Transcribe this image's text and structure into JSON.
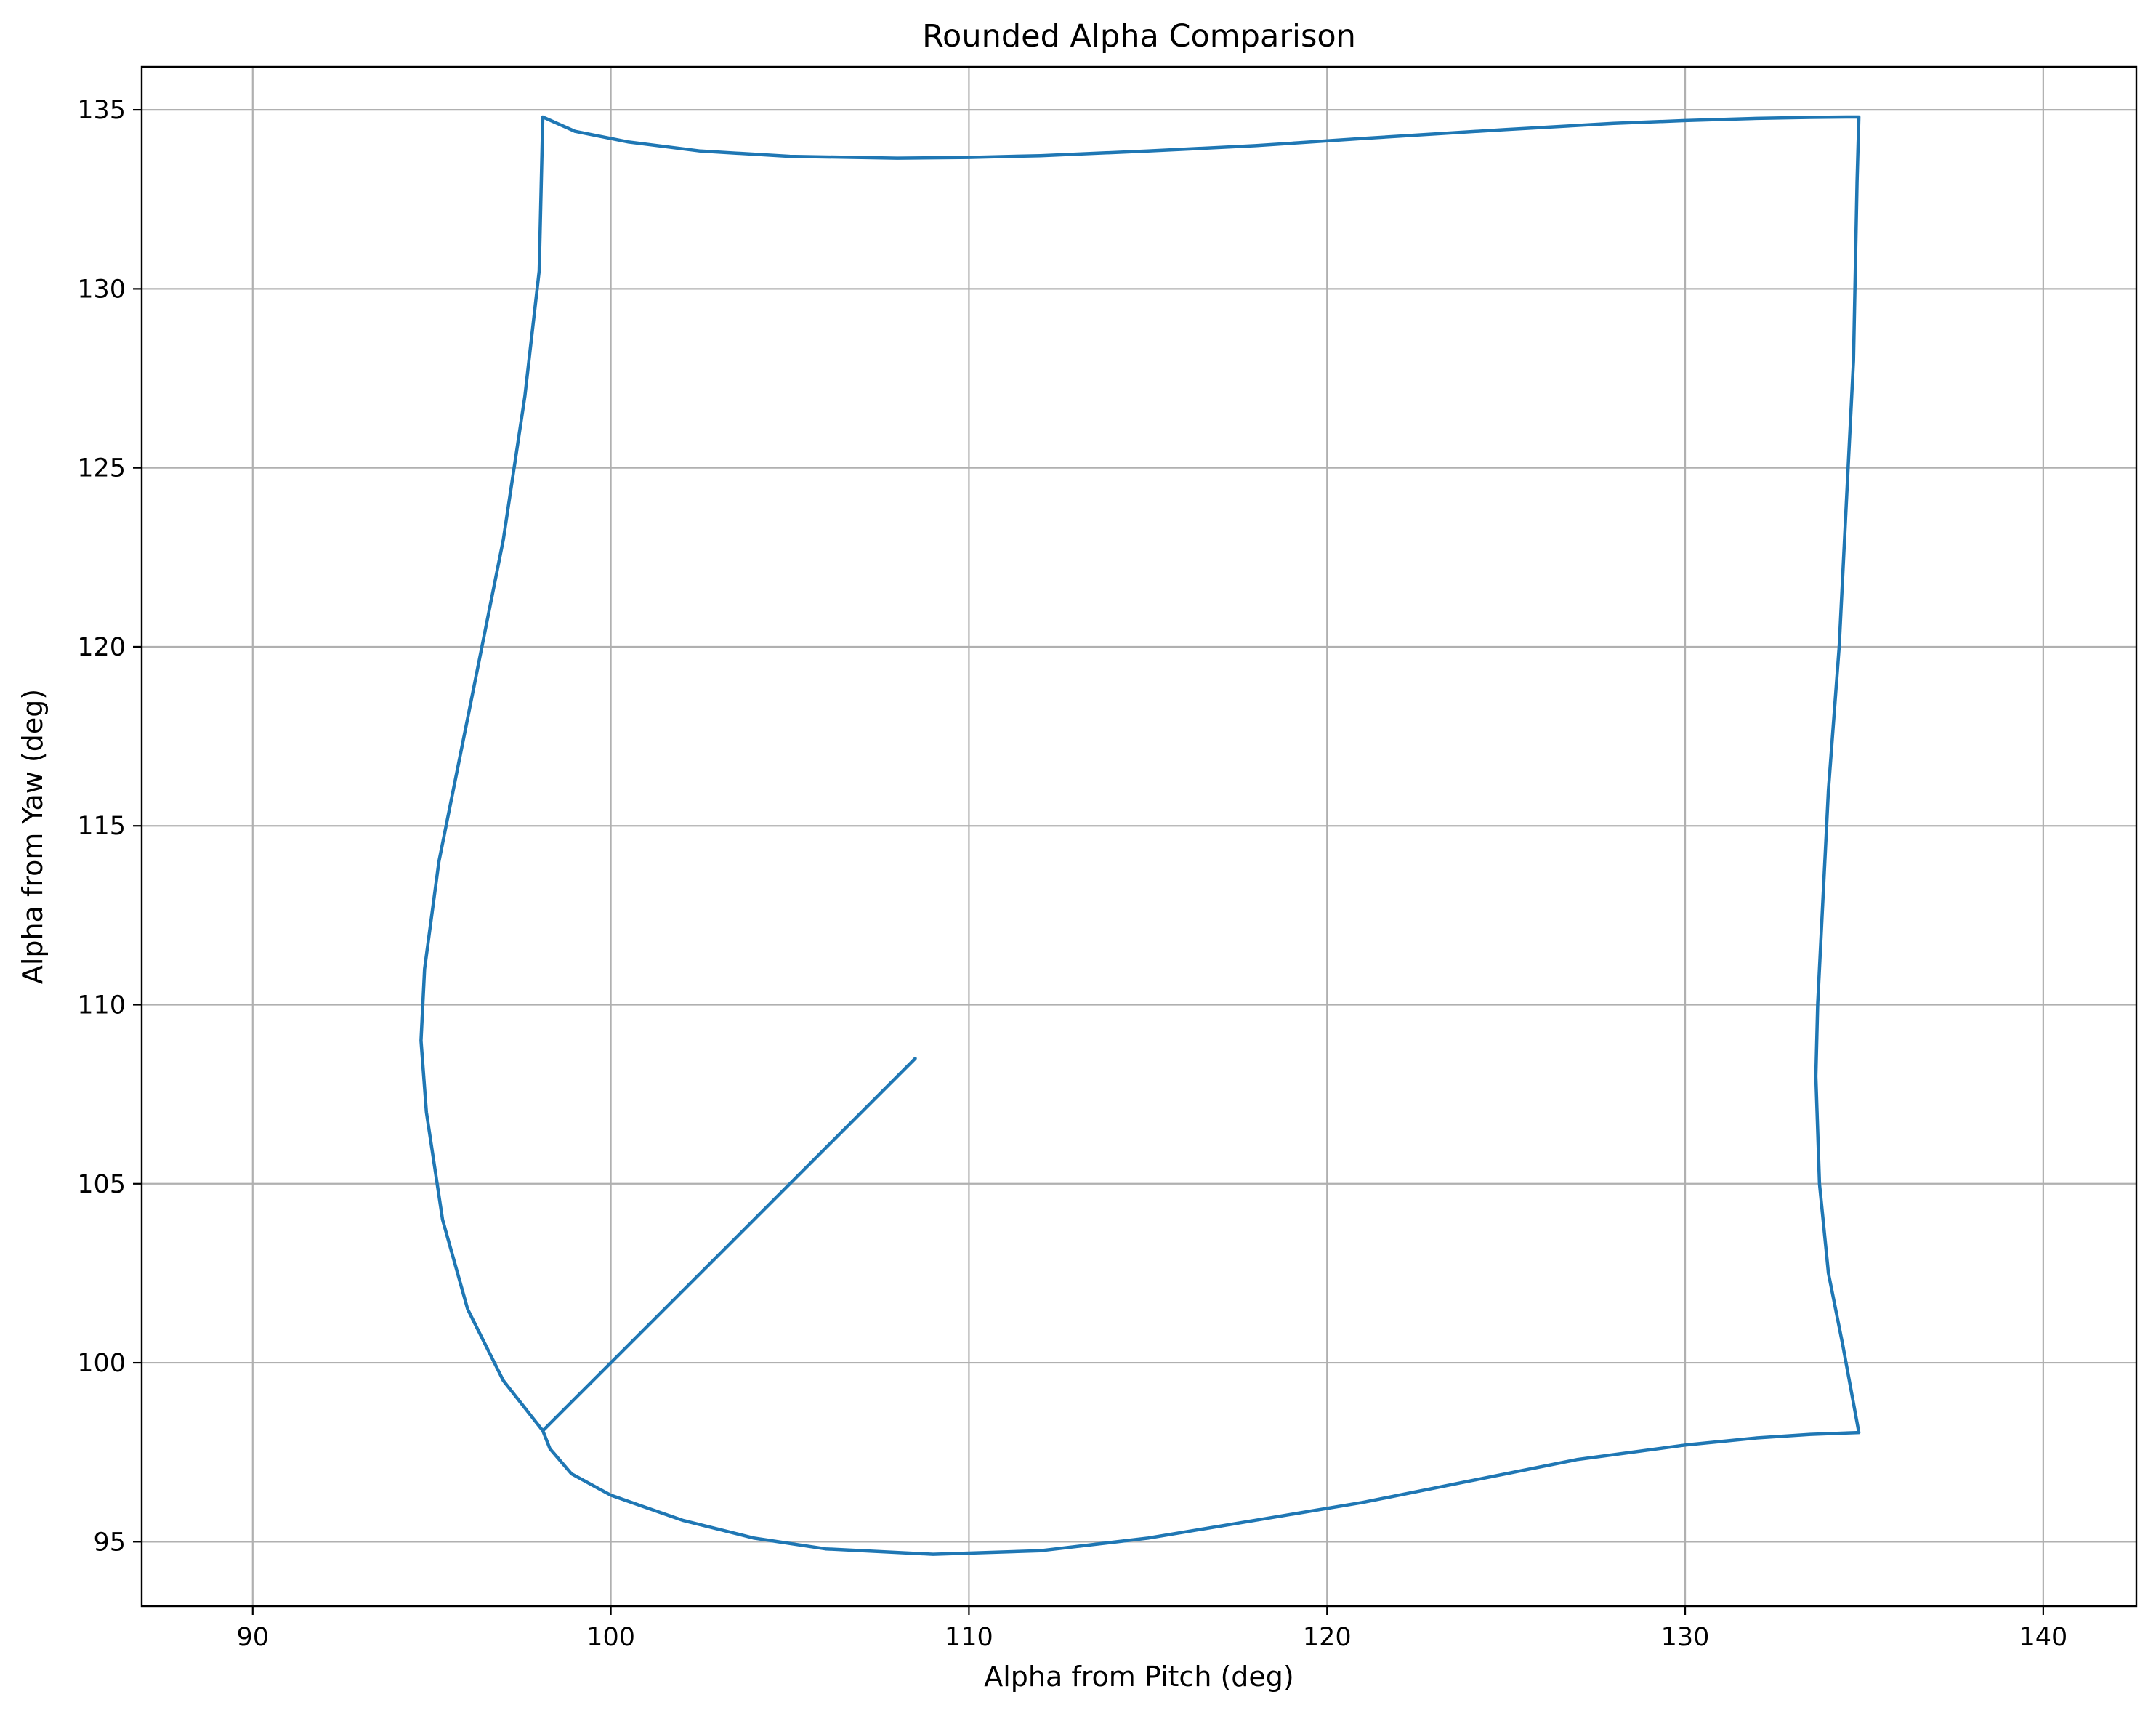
{
  "chart_data": {
    "type": "line",
    "title": "Rounded Alpha Comparison",
    "xlabel": "Alpha from Pitch (deg)",
    "ylabel": "Alpha from Yaw (deg)",
    "xlim": [
      86.9,
      142.6
    ],
    "ylim": [
      93.2,
      136.2
    ],
    "xticks": [
      90,
      100,
      110,
      120,
      130,
      140
    ],
    "yticks": [
      95,
      100,
      105,
      110,
      115,
      120,
      125,
      130,
      135
    ],
    "grid": true,
    "color": "#1f77b4",
    "series": [
      {
        "x": [
          108.5,
          98.1,
          97.0,
          96.0,
          95.3,
          94.85,
          94.7,
          94.8,
          95.2,
          96.0,
          97.0,
          97.6,
          98.0,
          98.1,
          99.0,
          100.5,
          102.5,
          105.0,
          108.0,
          110.0,
          112.0,
          115.0,
          118.0,
          121.0,
          125.0,
          128.0,
          130.0,
          132.0,
          133.5,
          134.5,
          134.85,
          134.8,
          134.7,
          134.5,
          134.3,
          134.0,
          133.8,
          133.7,
          133.65,
          133.75,
          134.0,
          134.4,
          134.85,
          133.5,
          132.0,
          130.0,
          127.0,
          124.0,
          121.0,
          118.0,
          115.0,
          112.0,
          109.0,
          106.0,
          104.0,
          102.0,
          100.0,
          98.9,
          98.3,
          98.1
        ],
        "y": [
          108.5,
          98.1,
          99.5,
          101.5,
          104.0,
          107.0,
          109.0,
          111.0,
          114.0,
          118.0,
          123.0,
          127.0,
          130.5,
          134.8,
          134.4,
          134.1,
          133.85,
          133.7,
          133.65,
          133.67,
          133.72,
          133.85,
          134.0,
          134.2,
          134.45,
          134.62,
          134.7,
          134.76,
          134.79,
          134.8,
          134.8,
          133.0,
          128.0,
          124.0,
          120.0,
          116.0,
          112.0,
          110.0,
          108.0,
          105.0,
          102.5,
          100.5,
          98.05,
          98.0,
          97.9,
          97.7,
          97.3,
          96.7,
          96.1,
          95.6,
          95.1,
          94.75,
          94.65,
          94.8,
          95.1,
          95.6,
          96.3,
          96.9,
          97.6,
          98.1
        ]
      }
    ]
  }
}
